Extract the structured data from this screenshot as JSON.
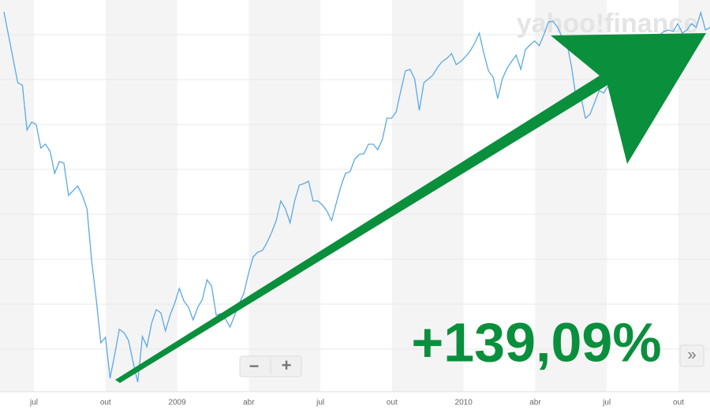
{
  "chart_data": {
    "type": "line",
    "watermark": "yahoo!finance",
    "annotation": "+139,09%",
    "x_labels": [
      "jul",
      "out",
      "2009",
      "abr",
      "jul",
      "out",
      "2010",
      "abr",
      "jul",
      "out"
    ],
    "controls": [
      "−",
      "+",
      "»"
    ],
    "ylim": [
      0,
      490
    ],
    "series": [
      {
        "color": "#5aa9e6",
        "values": [
          475,
          445,
          415,
          385,
          382,
          325,
          335,
          332,
          302,
          307,
          298,
          270,
          285,
          283,
          242,
          248,
          254,
          242,
          225,
          160,
          110,
          55,
          62,
          10,
          40,
          72,
          68,
          58,
          30,
          5,
          63,
          50,
          80,
          97,
          93,
          70,
          90,
          105,
          124,
          108,
          100,
          84,
          100,
          110,
          135,
          127,
          90,
          92,
          85,
          75,
          90,
          105,
          118,
          143,
          164,
          170,
          172,
          182,
          195,
          210,
          235,
          225,
          207,
          235,
          255,
          257,
          260,
          235,
          235,
          230,
          222,
          210,
          232,
          253,
          270,
          272,
          288,
          294,
          295,
          307,
          307,
          300,
          313,
          340,
          340,
          348,
          375,
          400,
          402,
          390,
          350,
          385,
          390,
          395,
          405,
          412,
          416,
          422,
          408,
          412,
          418,
          425,
          435,
          448,
          422,
          400,
          392,
          365,
          390,
          403,
          412,
          420,
          402,
          427,
          433,
          438,
          432,
          446,
          462,
          463,
          455,
          442,
          435,
          405,
          365,
          368,
          340,
          345,
          360,
          375,
          372,
          382,
          388,
          387,
          350,
          365,
          360,
          380,
          400,
          410,
          420,
          435,
          445,
          450,
          452,
          450,
          460,
          448,
          452,
          460,
          455,
          474,
          452,
          455
        ]
      }
    ]
  }
}
